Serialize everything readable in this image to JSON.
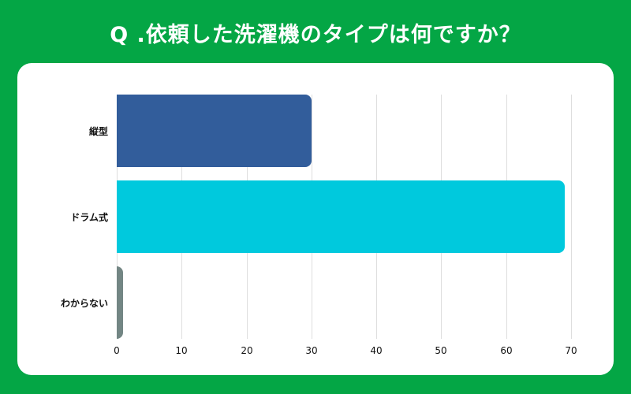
{
  "title": "Q .依頼した洗濯機のタイプは何ですか？",
  "colors": {
    "background": "#04a645",
    "bars": [
      "#325d9b",
      "#00c9dd",
      "#738684"
    ]
  },
  "chart_data": {
    "type": "bar",
    "orientation": "horizontal",
    "title": "Q .依頼した洗濯機のタイプは何ですか？",
    "categories": [
      "縦型",
      "ドラム式",
      "わからない"
    ],
    "values": [
      30,
      69,
      1
    ],
    "xlabel": "",
    "ylabel": "",
    "xlim": [
      0,
      70
    ],
    "x_ticks": [
      "0",
      "10",
      "20",
      "30",
      "40",
      "50",
      "60",
      "70"
    ],
    "grid": true,
    "legend": false
  }
}
